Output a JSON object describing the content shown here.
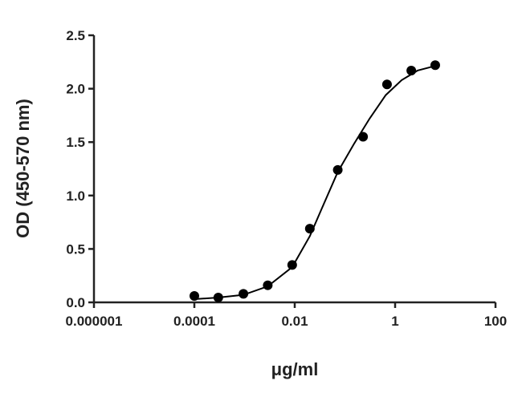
{
  "chart_data": {
    "type": "scatter",
    "x_label": "μg/ml",
    "y_label": "OD (450-570 nm)",
    "x_log": true,
    "xlim": [
      1e-06,
      100
    ],
    "xticks": [
      {
        "value": 1e-06,
        "label": "0.000001"
      },
      {
        "value": 0.0001,
        "label": "0.0001"
      },
      {
        "value": 0.01,
        "label": "0.01"
      },
      {
        "value": 1,
        "label": "1"
      },
      {
        "value": 100,
        "label": "100"
      }
    ],
    "ylim": [
      0,
      2.5
    ],
    "yticks": [
      {
        "value": 0,
        "label": "0.0"
      },
      {
        "value": 0.5,
        "label": "0.5"
      },
      {
        "value": 1,
        "label": "1.0"
      },
      {
        "value": 1.5,
        "label": "1.5"
      },
      {
        "value": 2,
        "label": "2.0"
      },
      {
        "value": 2.5,
        "label": "2.5"
      }
    ],
    "series": [
      {
        "type": "scatter",
        "color": "#000000",
        "x": [
          0.0001,
          0.0003,
          0.00095,
          0.0029,
          0.0089,
          0.02,
          0.072,
          0.23,
          0.69,
          2.1,
          6.3
        ],
        "values": [
          0.06,
          0.045,
          0.08,
          0.16,
          0.35,
          0.69,
          1.24,
          1.55,
          2.04,
          2.17,
          2.22
        ]
      },
      {
        "type": "line",
        "color": "#000000",
        "x": [
          0.0001,
          0.0003,
          0.00095,
          0.0029,
          0.0089,
          0.02,
          0.034,
          0.072,
          0.15,
          0.31,
          0.65,
          1.35,
          2.8,
          7.1
        ],
        "values": [
          0.03,
          0.045,
          0.07,
          0.15,
          0.33,
          0.62,
          0.87,
          1.22,
          1.48,
          1.72,
          1.94,
          2.08,
          2.17,
          2.22
        ]
      }
    ]
  }
}
